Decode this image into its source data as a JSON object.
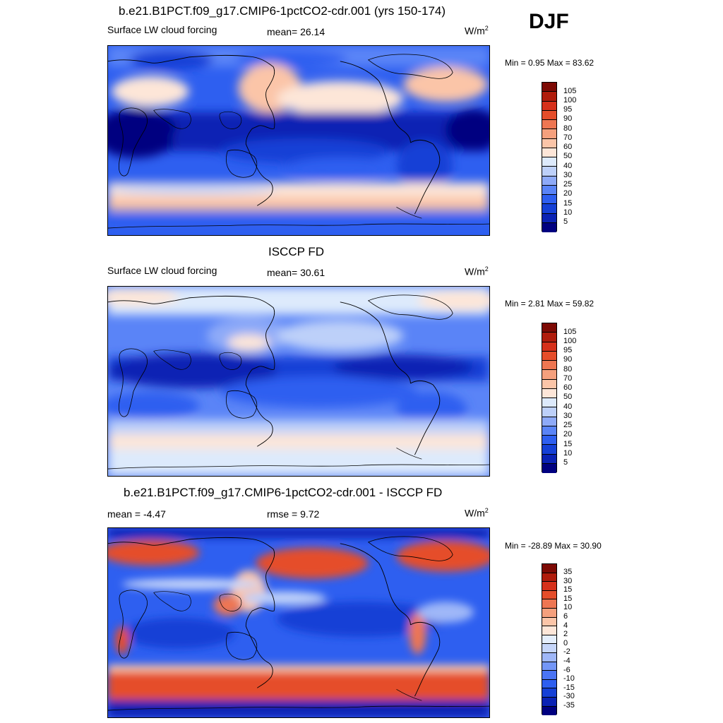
{
  "season": "DJF",
  "colors": {
    "absolute_scale": [
      "#000080",
      "#0a22b4",
      "#1540d6",
      "#2e5ff0",
      "#5a84f7",
      "#8eaaf8",
      "#bdd0f9",
      "#ddeafc",
      "#fde6d8",
      "#fbc5a8",
      "#f5a07d",
      "#ee7652",
      "#e54d2a",
      "#d6301a",
      "#b01c0c",
      "#7d0a04"
    ],
    "diff_scale": [
      "#000080",
      "#0a22b4",
      "#1540d6",
      "#2e5ff0",
      "#4a74f4",
      "#7396f7",
      "#9fb7f8",
      "#c6d6fa",
      "#e4eefc",
      "#fde6d8",
      "#fbc5a8",
      "#f5a07d",
      "#ee7652",
      "#e54d2a",
      "#d6301a",
      "#b01c0c",
      "#7d0a04"
    ]
  },
  "panels": [
    {
      "title": "b.e21.B1PCT.f09_g17.CMIP6-1pctCO2-cdr.001 (yrs 150-174)",
      "left_label": "Surface LW cloud forcing",
      "center_label": "mean=  26.14",
      "units": "W/m",
      "units_sup": "2",
      "minmax": "Min =   0.95 Max =  83.62",
      "colorbar_labels": [
        "105",
        "100",
        "95",
        "90",
        "80",
        "70",
        "60",
        "50",
        "40",
        "30",
        "25",
        "20",
        "15",
        "10",
        "5"
      ]
    },
    {
      "title": "ISCCP FD",
      "left_label": "Surface LW cloud forcing",
      "center_label": "mean=  30.61",
      "units": "W/m",
      "units_sup": "2",
      "minmax": "Min =   2.81 Max =  59.82",
      "colorbar_labels": [
        "105",
        "100",
        "95",
        "90",
        "80",
        "70",
        "60",
        "50",
        "40",
        "30",
        "25",
        "20",
        "15",
        "10",
        "5"
      ]
    },
    {
      "title": "b.e21.B1PCT.f09_g17.CMIP6-1pctCO2-cdr.001 - ISCCP FD",
      "left_label": "mean =  -4.47",
      "center_label": "rmse =   9.72",
      "units": "W/m",
      "units_sup": "2",
      "minmax": "Min = -28.89 Max =  30.90",
      "colorbar_labels": [
        "35",
        "30",
        "15",
        "15",
        "10",
        "6",
        "4",
        "2",
        "0",
        "-2",
        "-4",
        "-6",
        "-10",
        "-15",
        "-30",
        "-35"
      ]
    }
  ]
}
